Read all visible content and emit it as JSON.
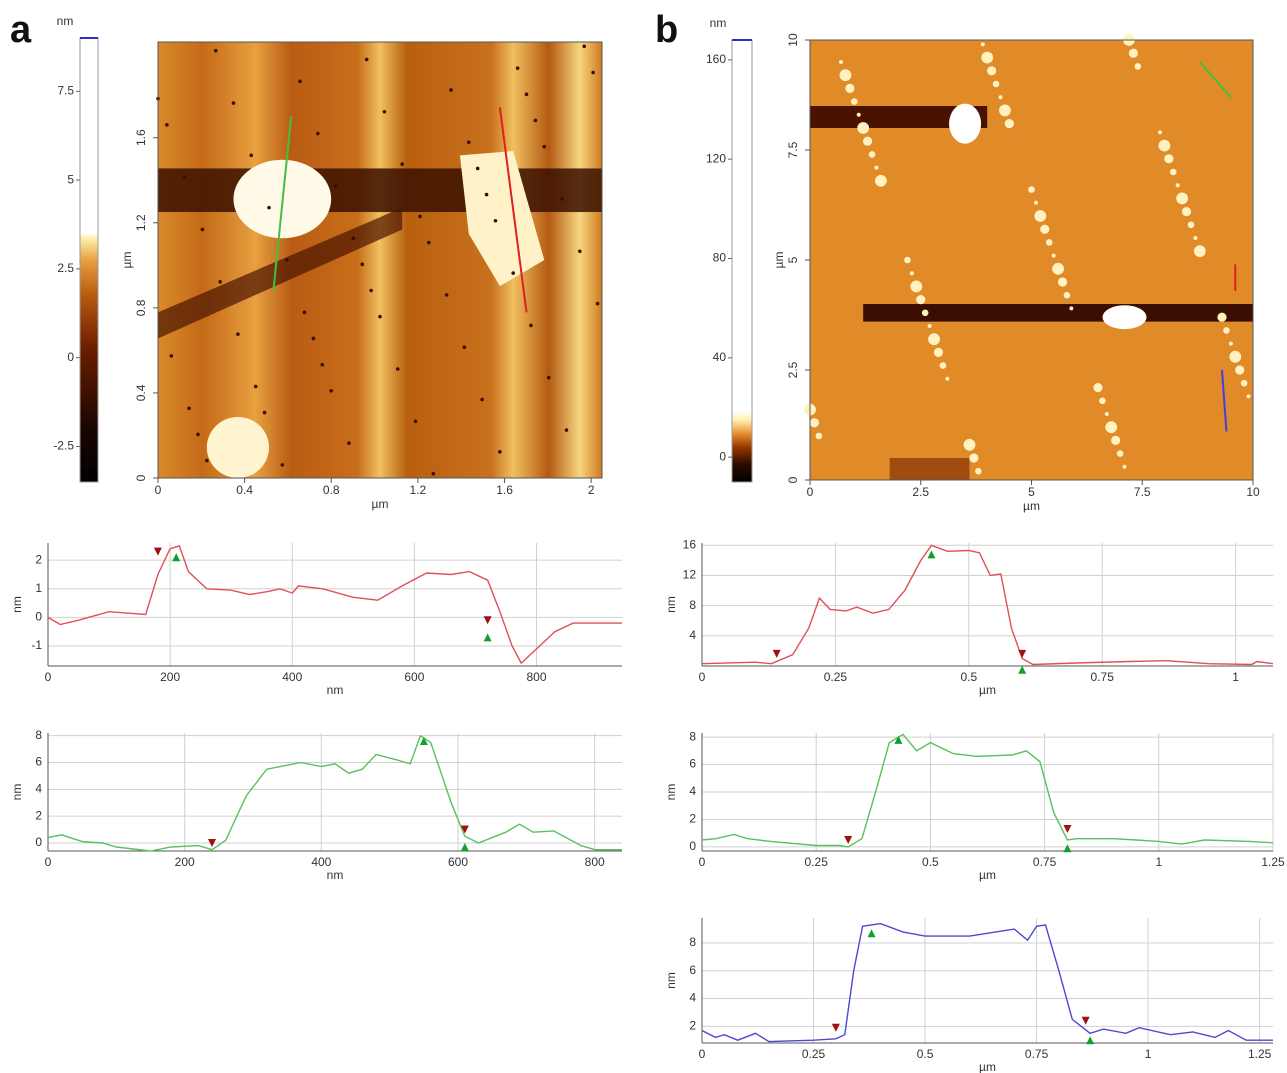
{
  "chart_data": [
    {
      "type": "image",
      "panel_label": "a",
      "colorbar_label": "nm",
      "colorbar_lim": [
        -3.5,
        9
      ],
      "colorbar_ticks": [
        -2.5,
        0,
        2.5,
        5,
        7.5
      ],
      "x_label": "µm",
      "y_label": "µm",
      "xlim": [
        0,
        2.05
      ],
      "xticks": [
        0,
        0.4,
        0.8,
        1.2,
        1.6,
        2
      ],
      "ylim": [
        0,
        2.05
      ],
      "yticks": [
        0,
        0.4,
        0.8,
        1.2,
        1.6
      ]
    },
    {
      "type": "line",
      "x_label": "nm",
      "y_label": "nm",
      "color": "#e0505a",
      "xlim": [
        0,
        940
      ],
      "xticks": [
        0,
        200,
        400,
        600,
        800
      ],
      "ylim": [
        -1.7,
        2.6
      ],
      "yticks": [
        -1,
        0,
        1,
        2
      ],
      "x": [
        0,
        20,
        50,
        100,
        160,
        180,
        200,
        215,
        230,
        260,
        300,
        330,
        360,
        380,
        400,
        410,
        450,
        500,
        540,
        580,
        620,
        660,
        690,
        720,
        740,
        760,
        775,
        790,
        830,
        860,
        940
      ],
      "values": [
        0,
        -0.25,
        -0.1,
        0.2,
        0.1,
        1.5,
        2.4,
        2.5,
        1.6,
        1.0,
        0.95,
        0.8,
        0.9,
        1.0,
        0.85,
        1.1,
        1.0,
        0.7,
        0.6,
        1.1,
        1.55,
        1.5,
        1.6,
        1.3,
        0.2,
        -1.0,
        -1.6,
        -1.3,
        -0.5,
        -0.2,
        -0.2
      ],
      "cursors_down": [
        [
          180,
          2.3
        ],
        [
          720,
          -0.1
        ]
      ],
      "cursors_up": [
        [
          210,
          2.1
        ],
        [
          720,
          -0.7
        ]
      ]
    },
    {
      "type": "line",
      "x_label": "nm",
      "y_label": "nm",
      "color": "#5cc05c",
      "xlim": [
        0,
        840
      ],
      "xticks": [
        0,
        200,
        400,
        600,
        800
      ],
      "ylim": [
        -0.6,
        8.2
      ],
      "yticks": [
        0,
        2,
        4,
        6,
        8
      ],
      "x": [
        0,
        20,
        50,
        80,
        100,
        150,
        180,
        220,
        240,
        260,
        290,
        320,
        350,
        370,
        400,
        420,
        440,
        460,
        480,
        510,
        530,
        545,
        560,
        590,
        610,
        630,
        670,
        690,
        710,
        740,
        780,
        800,
        840
      ],
      "values": [
        0.4,
        0.6,
        0.1,
        0,
        -0.3,
        -0.6,
        -0.3,
        -0.2,
        -0.5,
        0.2,
        3.5,
        5.5,
        5.8,
        6.0,
        5.7,
        5.9,
        5.2,
        5.5,
        6.6,
        6.2,
        5.9,
        8.0,
        7.5,
        3.0,
        0.5,
        0.0,
        0.8,
        1.4,
        0.8,
        0.9,
        -0.2,
        -0.5,
        -0.5
      ],
      "cursors_down": [
        [
          240,
          0.0
        ],
        [
          610,
          1.0
        ]
      ],
      "cursors_up": [
        [
          550,
          7.6
        ],
        [
          610,
          -0.3
        ]
      ]
    },
    {
      "type": "image",
      "panel_label": "b",
      "colorbar_label": "nm",
      "colorbar_lim": [
        -10,
        168
      ],
      "colorbar_ticks": [
        0,
        40,
        80,
        120,
        160
      ],
      "x_label": "µm",
      "y_label": "µm",
      "xlim": [
        0,
        10
      ],
      "xticks": [
        0,
        2.5,
        5,
        7.5,
        10
      ],
      "ylim": [
        0,
        10
      ],
      "yticks": [
        0,
        2.5,
        5,
        7.5,
        10
      ]
    },
    {
      "type": "line",
      "x_label": "µm",
      "y_label": "nm",
      "color": "#e0505a",
      "xlim": [
        0,
        1.07
      ],
      "xticks": [
        0,
        0.25,
        0.5,
        0.75,
        1
      ],
      "ylim": [
        0,
        16.3
      ],
      "yticks": [
        4,
        8,
        12,
        16
      ],
      "x": [
        0,
        0.1,
        0.13,
        0.17,
        0.2,
        0.22,
        0.24,
        0.27,
        0.29,
        0.32,
        0.35,
        0.38,
        0.41,
        0.43,
        0.46,
        0.5,
        0.52,
        0.54,
        0.56,
        0.58,
        0.6,
        0.62,
        0.7,
        0.8,
        0.87,
        0.95,
        1.03,
        1.04,
        1.07
      ],
      "values": [
        0.3,
        0.5,
        0.3,
        1.5,
        5,
        9,
        7.5,
        7.3,
        7.8,
        7,
        7.5,
        10,
        14,
        16,
        15.2,
        15.3,
        15,
        12,
        12.2,
        5,
        1,
        0.2,
        0.4,
        0.6,
        0.7,
        0.3,
        0.2,
        0.6,
        0.3
      ],
      "cursors_down": [
        [
          0.14,
          1.6
        ],
        [
          0.6,
          1.6
        ]
      ],
      "cursors_up": [
        [
          0.43,
          14.8
        ],
        [
          0.6,
          -0.5
        ]
      ]
    },
    {
      "type": "line",
      "x_label": "µm",
      "y_label": "nm",
      "color": "#5cc05c",
      "xlim": [
        0,
        1.25
      ],
      "xticks": [
        0,
        0.25,
        0.5,
        0.75,
        1,
        1.25
      ],
      "ylim": [
        -0.3,
        8.3
      ],
      "yticks": [
        0,
        2,
        4,
        6,
        8
      ],
      "x": [
        0,
        0.03,
        0.07,
        0.1,
        0.15,
        0.25,
        0.3,
        0.32,
        0.35,
        0.38,
        0.41,
        0.44,
        0.47,
        0.5,
        0.55,
        0.6,
        0.68,
        0.71,
        0.74,
        0.77,
        0.8,
        0.82,
        0.9,
        0.95,
        1.0,
        1.05,
        1.1,
        1.2,
        1.25
      ],
      "values": [
        0.5,
        0.6,
        0.9,
        0.6,
        0.4,
        0.1,
        0.1,
        0,
        0.6,
        4,
        7.6,
        8.2,
        7.0,
        7.6,
        6.8,
        6.6,
        6.7,
        7.0,
        6.2,
        2.5,
        0.5,
        0.6,
        0.6,
        0.5,
        0.4,
        0.2,
        0.5,
        0.4,
        0.3
      ],
      "cursors_down": [
        [
          0.32,
          0.5
        ],
        [
          0.8,
          1.3
        ]
      ],
      "cursors_up": [
        [
          0.43,
          7.8
        ],
        [
          0.8,
          -0.1
        ]
      ]
    },
    {
      "type": "line",
      "x_label": "µm",
      "y_label": "nm",
      "color": "#4a4ad0",
      "xlim": [
        0,
        1.28
      ],
      "xticks": [
        0,
        0.25,
        0.5,
        0.75,
        1,
        1.25
      ],
      "ylim": [
        0.8,
        9.8
      ],
      "yticks": [
        2,
        4,
        6,
        8
      ],
      "x": [
        0,
        0.03,
        0.05,
        0.08,
        0.12,
        0.15,
        0.25,
        0.3,
        0.32,
        0.34,
        0.36,
        0.4,
        0.45,
        0.5,
        0.6,
        0.7,
        0.73,
        0.75,
        0.77,
        0.8,
        0.83,
        0.87,
        0.9,
        0.95,
        0.98,
        1.05,
        1.1,
        1.15,
        1.18,
        1.22,
        1.28
      ],
      "values": [
        1.7,
        1.2,
        1.4,
        1.0,
        1.5,
        0.9,
        1.0,
        1.1,
        1.4,
        6,
        9.2,
        9.4,
        8.8,
        8.5,
        8.5,
        9.0,
        8.2,
        9.2,
        9.3,
        6,
        2.5,
        1.5,
        1.8,
        1.5,
        1.9,
        1.4,
        1.6,
        1.2,
        1.7,
        1.0,
        1.0
      ],
      "cursors_down": [
        [
          0.3,
          1.9
        ],
        [
          0.86,
          2.4
        ]
      ],
      "cursors_up": [
        [
          0.38,
          8.7
        ],
        [
          0.87,
          1.0
        ]
      ]
    }
  ]
}
